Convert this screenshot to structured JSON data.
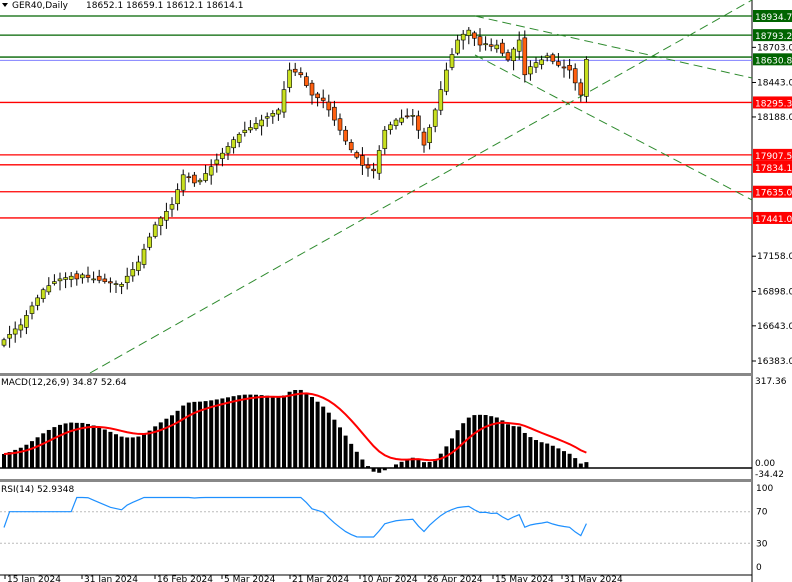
{
  "header": {
    "symbol": "GER40,Daily",
    "ohlc": "18652.1 18659.1 18612.1 18614.1"
  },
  "colors": {
    "bull": "#c8e020",
    "bear": "#ff6010",
    "support": "#ff0000",
    "resistance": "#006400",
    "trend": "#2e8b2e",
    "macd_signal": "#ff0000",
    "rsi": "#1e90ff"
  },
  "chart_data": [
    {
      "type": "candlestick",
      "title": "GER40,Daily",
      "x_ticks": [
        "15 Jan 2024",
        "31 Jan 2024",
        "16 Feb 2024",
        "5 Mar 2024",
        "21 Mar 2024",
        "10 Apr 2024",
        "26 Apr 2024",
        "15 May 2024",
        "31 May 2024"
      ],
      "y_ticks": [
        "18703.0",
        "18443.0",
        "18188.0",
        "17158.0",
        "16898.0",
        "16643.0",
        "16383.0"
      ],
      "ylim": [
        16300,
        19050
      ],
      "closes": [
        16540,
        16580,
        16620,
        16650,
        16720,
        16790,
        16850,
        16910,
        16940,
        16970,
        16990,
        17000,
        17010,
        16990,
        17020,
        17000,
        16990,
        16980,
        16970,
        16960,
        16955,
        16950,
        17010,
        17060,
        17115,
        17210,
        17300,
        17390,
        17440,
        17490,
        17540,
        17650,
        17760,
        17740,
        17700,
        17720,
        17770,
        17820,
        17870,
        17920,
        17970,
        18020,
        18060,
        18090,
        18110,
        18140,
        18165,
        18190,
        18215,
        18240,
        18390,
        18535,
        18520,
        18500,
        18420,
        18350,
        18330,
        18310,
        18240,
        18165,
        18090,
        18010,
        17945,
        17890,
        17830,
        17810,
        17790,
        17940,
        18090,
        18130,
        18165,
        18180,
        18190,
        18200,
        18090,
        17980,
        18110,
        18240,
        18390,
        18535,
        18650,
        18757,
        18800,
        18830,
        18770,
        18720,
        18730,
        18710,
        18720,
        18660,
        18610,
        18690,
        18757,
        18500,
        18560,
        18590,
        18610,
        18640,
        18600,
        18570,
        18550,
        18535,
        18440,
        18350,
        18614
      ],
      "levels": [
        {
          "value": 18934.7,
          "label": "18934.7",
          "kind": "resistance"
        },
        {
          "value": 18793.2,
          "label": "18793.2",
          "kind": "resistance"
        },
        {
          "value": 18630.8,
          "label": "18630.8",
          "kind": "resistance"
        },
        {
          "value": 18295.3,
          "label": "18295.3",
          "kind": "support"
        },
        {
          "value": 17907.5,
          "label": "17907.5",
          "kind": "support"
        },
        {
          "value": 17834.1,
          "label": "17834.1",
          "kind": "support"
        },
        {
          "value": 17635.0,
          "label": "17635.0",
          "kind": "support"
        },
        {
          "value": 17441.0,
          "label": "17441.0",
          "kind": "support"
        }
      ]
    },
    {
      "type": "bar",
      "title": "MACD(12,26,9) 34.87 52.64",
      "y_ticks": [
        "317.36",
        "0.00",
        "-34.42"
      ],
      "ylim": [
        -34.42,
        317.36
      ]
    },
    {
      "type": "line",
      "title": "RSI(14) 52.9348",
      "y_ticks": [
        "100",
        "70",
        "30",
        "0"
      ],
      "ylim": [
        0,
        100
      ],
      "levels": [
        70,
        30
      ]
    }
  ]
}
